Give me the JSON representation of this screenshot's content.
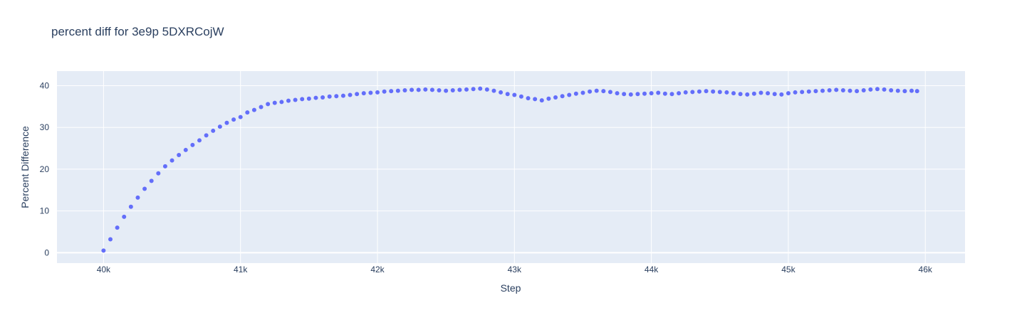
{
  "chart_data": {
    "type": "scatter",
    "title": "percent diff for 3e9p 5DXRCojW",
    "xlabel": "Step",
    "ylabel": "Percent Difference",
    "xlim": [
      39660,
      46290
    ],
    "ylim": [
      -2.5,
      43.5
    ],
    "grid": true,
    "legend": "none",
    "x_ticks": [
      {
        "value": 40000,
        "label": "40k"
      },
      {
        "value": 41000,
        "label": "41k"
      },
      {
        "value": 42000,
        "label": "42k"
      },
      {
        "value": 43000,
        "label": "43k"
      },
      {
        "value": 44000,
        "label": "44k"
      },
      {
        "value": 45000,
        "label": "45k"
      },
      {
        "value": 46000,
        "label": "46k"
      }
    ],
    "y_ticks": [
      {
        "value": 0,
        "label": "0"
      },
      {
        "value": 10,
        "label": "10"
      },
      {
        "value": 20,
        "label": "20"
      },
      {
        "value": 30,
        "label": "30"
      },
      {
        "value": 40,
        "label": "40"
      }
    ],
    "series": [
      {
        "color": "#636efa",
        "x": [
          40000,
          40050,
          40100,
          40150,
          40200,
          40250,
          40300,
          40350,
          40400,
          40450,
          40500,
          40550,
          40600,
          40650,
          40700,
          40750,
          40800,
          40850,
          40900,
          40950,
          41000,
          41050,
          41100,
          41150,
          41200,
          41250,
          41300,
          41350,
          41400,
          41450,
          41500,
          41550,
          41600,
          41650,
          41700,
          41750,
          41800,
          41850,
          41900,
          41950,
          42000,
          42050,
          42100,
          42150,
          42200,
          42250,
          42300,
          42350,
          42400,
          42450,
          42500,
          42550,
          42600,
          42650,
          42700,
          42750,
          42800,
          42850,
          42900,
          42950,
          43000,
          43050,
          43100,
          43150,
          43200,
          43250,
          43300,
          43350,
          43400,
          43450,
          43500,
          43550,
          43600,
          43650,
          43700,
          43750,
          43800,
          43850,
          43900,
          43950,
          44000,
          44050,
          44100,
          44150,
          44200,
          44250,
          44300,
          44350,
          44400,
          44450,
          44500,
          44550,
          44600,
          44650,
          44700,
          44750,
          44800,
          44850,
          44900,
          44950,
          45000,
          45050,
          45100,
          45150,
          45200,
          45250,
          45300,
          45350,
          45400,
          45450,
          45500,
          45550,
          45600,
          45650,
          45700,
          45750,
          45800,
          45850,
          45900,
          45940
        ],
        "y": [
          0.5,
          3.2,
          6.0,
          8.6,
          11.0,
          13.2,
          15.3,
          17.2,
          19.0,
          20.7,
          22.1,
          23.4,
          24.6,
          25.8,
          26.9,
          28.1,
          29.2,
          30.2,
          31.1,
          31.9,
          32.5,
          33.6,
          34.2,
          34.9,
          35.6,
          35.9,
          36.1,
          36.4,
          36.6,
          36.8,
          36.9,
          37.1,
          37.2,
          37.4,
          37.5,
          37.6,
          37.8,
          38.0,
          38.2,
          38.3,
          38.4,
          38.6,
          38.7,
          38.8,
          38.9,
          39.0,
          39.0,
          39.1,
          39.0,
          38.9,
          38.8,
          38.9,
          39.0,
          39.1,
          39.2,
          39.3,
          39.1,
          38.8,
          38.4,
          38.0,
          37.8,
          37.4,
          37.0,
          36.8,
          36.5,
          36.9,
          37.2,
          37.5,
          37.8,
          38.1,
          38.3,
          38.6,
          38.8,
          38.7,
          38.5,
          38.2,
          38.0,
          37.9,
          38.0,
          38.1,
          38.2,
          38.3,
          38.1,
          38.0,
          38.2,
          38.4,
          38.5,
          38.6,
          38.7,
          38.6,
          38.5,
          38.4,
          38.2,
          38.0,
          37.9,
          38.1,
          38.3,
          38.2,
          38.0,
          37.9,
          38.2,
          38.4,
          38.5,
          38.6,
          38.7,
          38.8,
          38.9,
          39.0,
          38.9,
          38.8,
          38.7,
          38.9,
          39.1,
          39.2,
          39.1,
          38.9,
          38.8,
          38.7,
          38.8,
          38.7
        ]
      }
    ]
  }
}
